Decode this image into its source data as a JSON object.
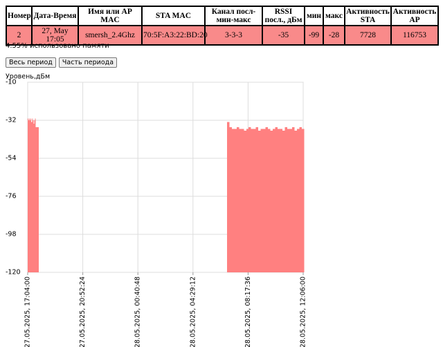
{
  "table": {
    "headers": [
      "Номер",
      "Дата-Время",
      "Имя или AP MAC",
      "STA MAC",
      "Канал посл-мин-макс",
      "RSSI посл., дБм",
      "мин",
      "макс",
      "Активность STA",
      "Активность AP"
    ],
    "rows": [
      [
        "2",
        "27, May 17:05",
        "smersh_2.4Ghz",
        "70:5F:A3:22:BD:20",
        "3-3-3",
        "-35",
        "-99",
        "-28",
        "7728",
        "116753"
      ]
    ]
  },
  "memory_text": "4.55% использовано памяти",
  "buttons": [
    "Весь период",
    "Часть периода"
  ],
  "chart_data": {
    "type": "area",
    "y_label": "Уровень,дБм",
    "color": "#ff8080",
    "grid": true,
    "x": [
      "2025-05-27T17:04",
      "2025-05-27T17:07",
      "2025-05-27T17:10",
      "2025-05-27T17:13",
      "2025-05-27T17:16",
      "2025-05-27T17:19",
      "2025-05-27T17:22",
      "2025-05-27T17:25",
      "2025-05-27T17:28",
      "2025-05-27T17:31",
      "2025-05-27T17:34",
      "2025-05-27T17:37",
      "2025-05-27T17:40",
      "2025-05-28T06:50",
      "2025-05-28T07:00",
      "2025-05-28T07:10",
      "2025-05-28T07:20",
      "2025-05-28T07:30",
      "2025-05-28T07:40",
      "2025-05-28T07:50",
      "2025-05-28T08:00",
      "2025-05-28T08:10",
      "2025-05-28T08:20",
      "2025-05-28T08:30",
      "2025-05-28T08:40",
      "2025-05-28T08:50",
      "2025-05-28T09:00",
      "2025-05-28T09:10",
      "2025-05-28T09:20",
      "2025-05-28T09:30",
      "2025-05-28T09:40",
      "2025-05-28T09:50",
      "2025-05-28T10:00",
      "2025-05-28T10:10",
      "2025-05-28T10:20",
      "2025-05-28T10:30",
      "2025-05-28T10:40",
      "2025-05-28T10:50",
      "2025-05-28T11:00",
      "2025-05-28T11:10",
      "2025-05-28T11:20",
      "2025-05-28T11:30",
      "2025-05-28T11:40",
      "2025-05-28T11:50",
      "2025-05-28T12:00"
    ],
    "values": [
      -31,
      -32,
      -31,
      -32,
      -31,
      -33,
      -31,
      -32,
      -34,
      -32,
      -31,
      -36,
      -36,
      -33,
      -36,
      -37,
      -37,
      -36,
      -37,
      -37,
      -38,
      -37,
      -36,
      -37,
      -37,
      -36,
      -38,
      -37,
      -37,
      -36,
      -37,
      -38,
      -37,
      -36,
      -37,
      -37,
      -38,
      -36,
      -37,
      -37,
      -36,
      -38,
      -37,
      -36,
      -37
    ],
    "xlim": [
      "2025-05-27T17:04:00",
      "2025-05-28T12:06:00"
    ],
    "xticks": [
      {
        "value": "2025-05-27T17:04:00",
        "label": "27.05.2025, 17:04:00"
      },
      {
        "value": "2025-05-27T20:52:24",
        "label": "27.05.2025, 20:52:24"
      },
      {
        "value": "2025-05-28T00:40:48",
        "label": "28.05.2025, 00:40:48"
      },
      {
        "value": "2025-05-28T04:29:12",
        "label": "28.05.2025, 04:29:12"
      },
      {
        "value": "2025-05-28T08:17:36",
        "label": "28.05.2025, 08:17:36"
      },
      {
        "value": "2025-05-28T12:06:00",
        "label": "28.05.2025, 12:06:00"
      }
    ],
    "ylim": [
      -120,
      -10
    ],
    "yticks": [
      -120,
      -98,
      -76,
      -54,
      -32,
      -10
    ]
  }
}
